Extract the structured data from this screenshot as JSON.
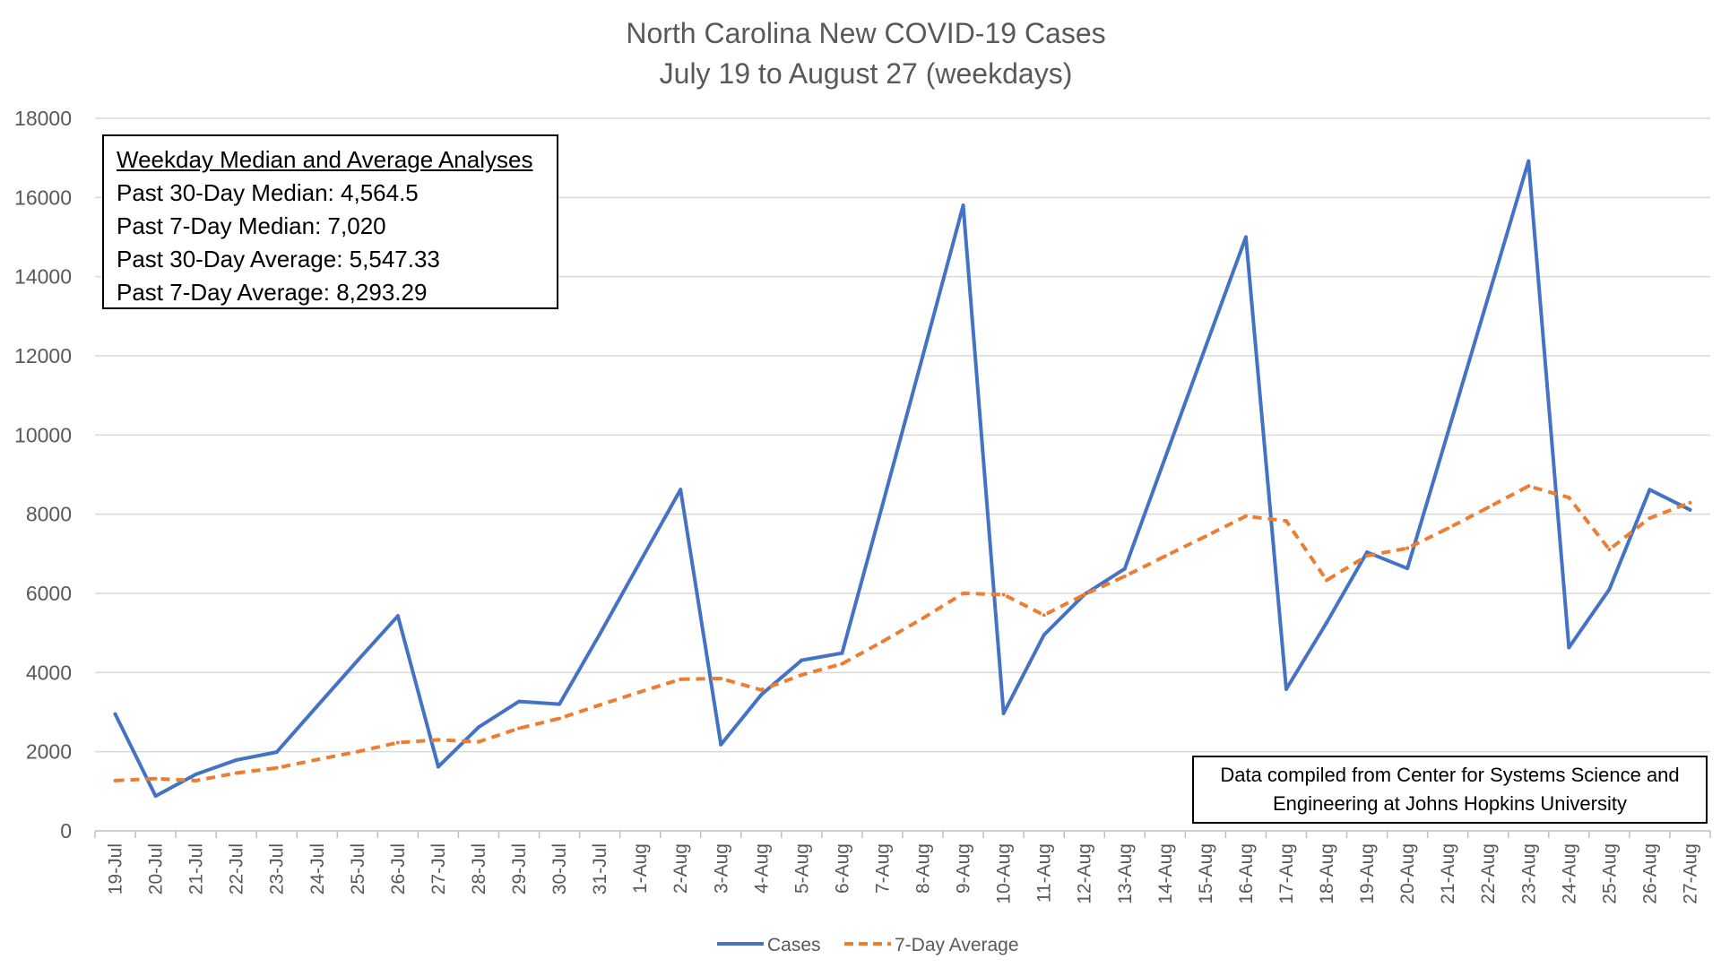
{
  "chart_data": {
    "type": "line",
    "title": "North Carolina New COVID-19 Cases",
    "subtitle": "July 19 to August 27 (weekdays)",
    "xlabel": "",
    "ylabel": "",
    "ylim": [
      0,
      18000
    ],
    "yticks": [
      0,
      2000,
      4000,
      6000,
      8000,
      10000,
      12000,
      14000,
      16000,
      18000
    ],
    "grid": true,
    "legend_position": "bottom",
    "categories": [
      "19-Jul",
      "20-Jul",
      "21-Jul",
      "22-Jul",
      "23-Jul",
      "24-Jul",
      "25-Jul",
      "26-Jul",
      "27-Jul",
      "28-Jul",
      "29-Jul",
      "30-Jul",
      "31-Jul",
      "1-Aug",
      "2-Aug",
      "3-Aug",
      "4-Aug",
      "5-Aug",
      "6-Aug",
      "7-Aug",
      "8-Aug",
      "9-Aug",
      "10-Aug",
      "11-Aug",
      "12-Aug",
      "13-Aug",
      "14-Aug",
      "15-Aug",
      "16-Aug",
      "17-Aug",
      "18-Aug",
      "19-Aug",
      "20-Aug",
      "21-Aug",
      "22-Aug",
      "23-Aug",
      "24-Aug",
      "25-Aug",
      "26-Aug",
      "27-Aug"
    ],
    "series": [
      {
        "name": "Cases",
        "color": "#4472C4",
        "dash": "solid",
        "values": [
          2950,
          880,
          1430,
          1790,
          1990,
          3150,
          4300,
          5430,
          1620,
          2620,
          3270,
          3200,
          4970,
          6800,
          8620,
          2180,
          3440,
          4310,
          4490,
          8230,
          12000,
          15800,
          2970,
          4950,
          5970,
          6620,
          9420,
          12220,
          15000,
          3580,
          5260,
          7040,
          6630,
          10050,
          13480,
          16920,
          4630,
          6100,
          8620,
          8110
        ]
      },
      {
        "name": "7-Day Average",
        "color": "#ED7D31",
        "dash": "dashed",
        "values": [
          1270,
          1320,
          1270,
          1460,
          1590,
          1800,
          2000,
          2230,
          2300,
          2250,
          2590,
          2840,
          3180,
          3510,
          3830,
          3850,
          3560,
          3940,
          4220,
          4780,
          5370,
          6000,
          5970,
          5450,
          5970,
          6430,
          6940,
          7440,
          7950,
          7830,
          6330,
          6950,
          7140,
          7640,
          8170,
          8710,
          8420,
          7110,
          7900,
          8290
        ]
      }
    ],
    "annotations": {
      "stats_box": {
        "heading": "Weekday Median and Average Analyses",
        "lines": [
          "Past 30-Day Median: 4,564.5",
          "Past 7-Day Median: 7,020",
          "Past 30-Day Average: 5,547.33",
          "Past 7-Day Average: 8,293.29"
        ]
      },
      "source_box": {
        "line1": "Data compiled from Center for Systems Science and",
        "line2": "Engineering at Johns Hopkins University"
      }
    }
  }
}
